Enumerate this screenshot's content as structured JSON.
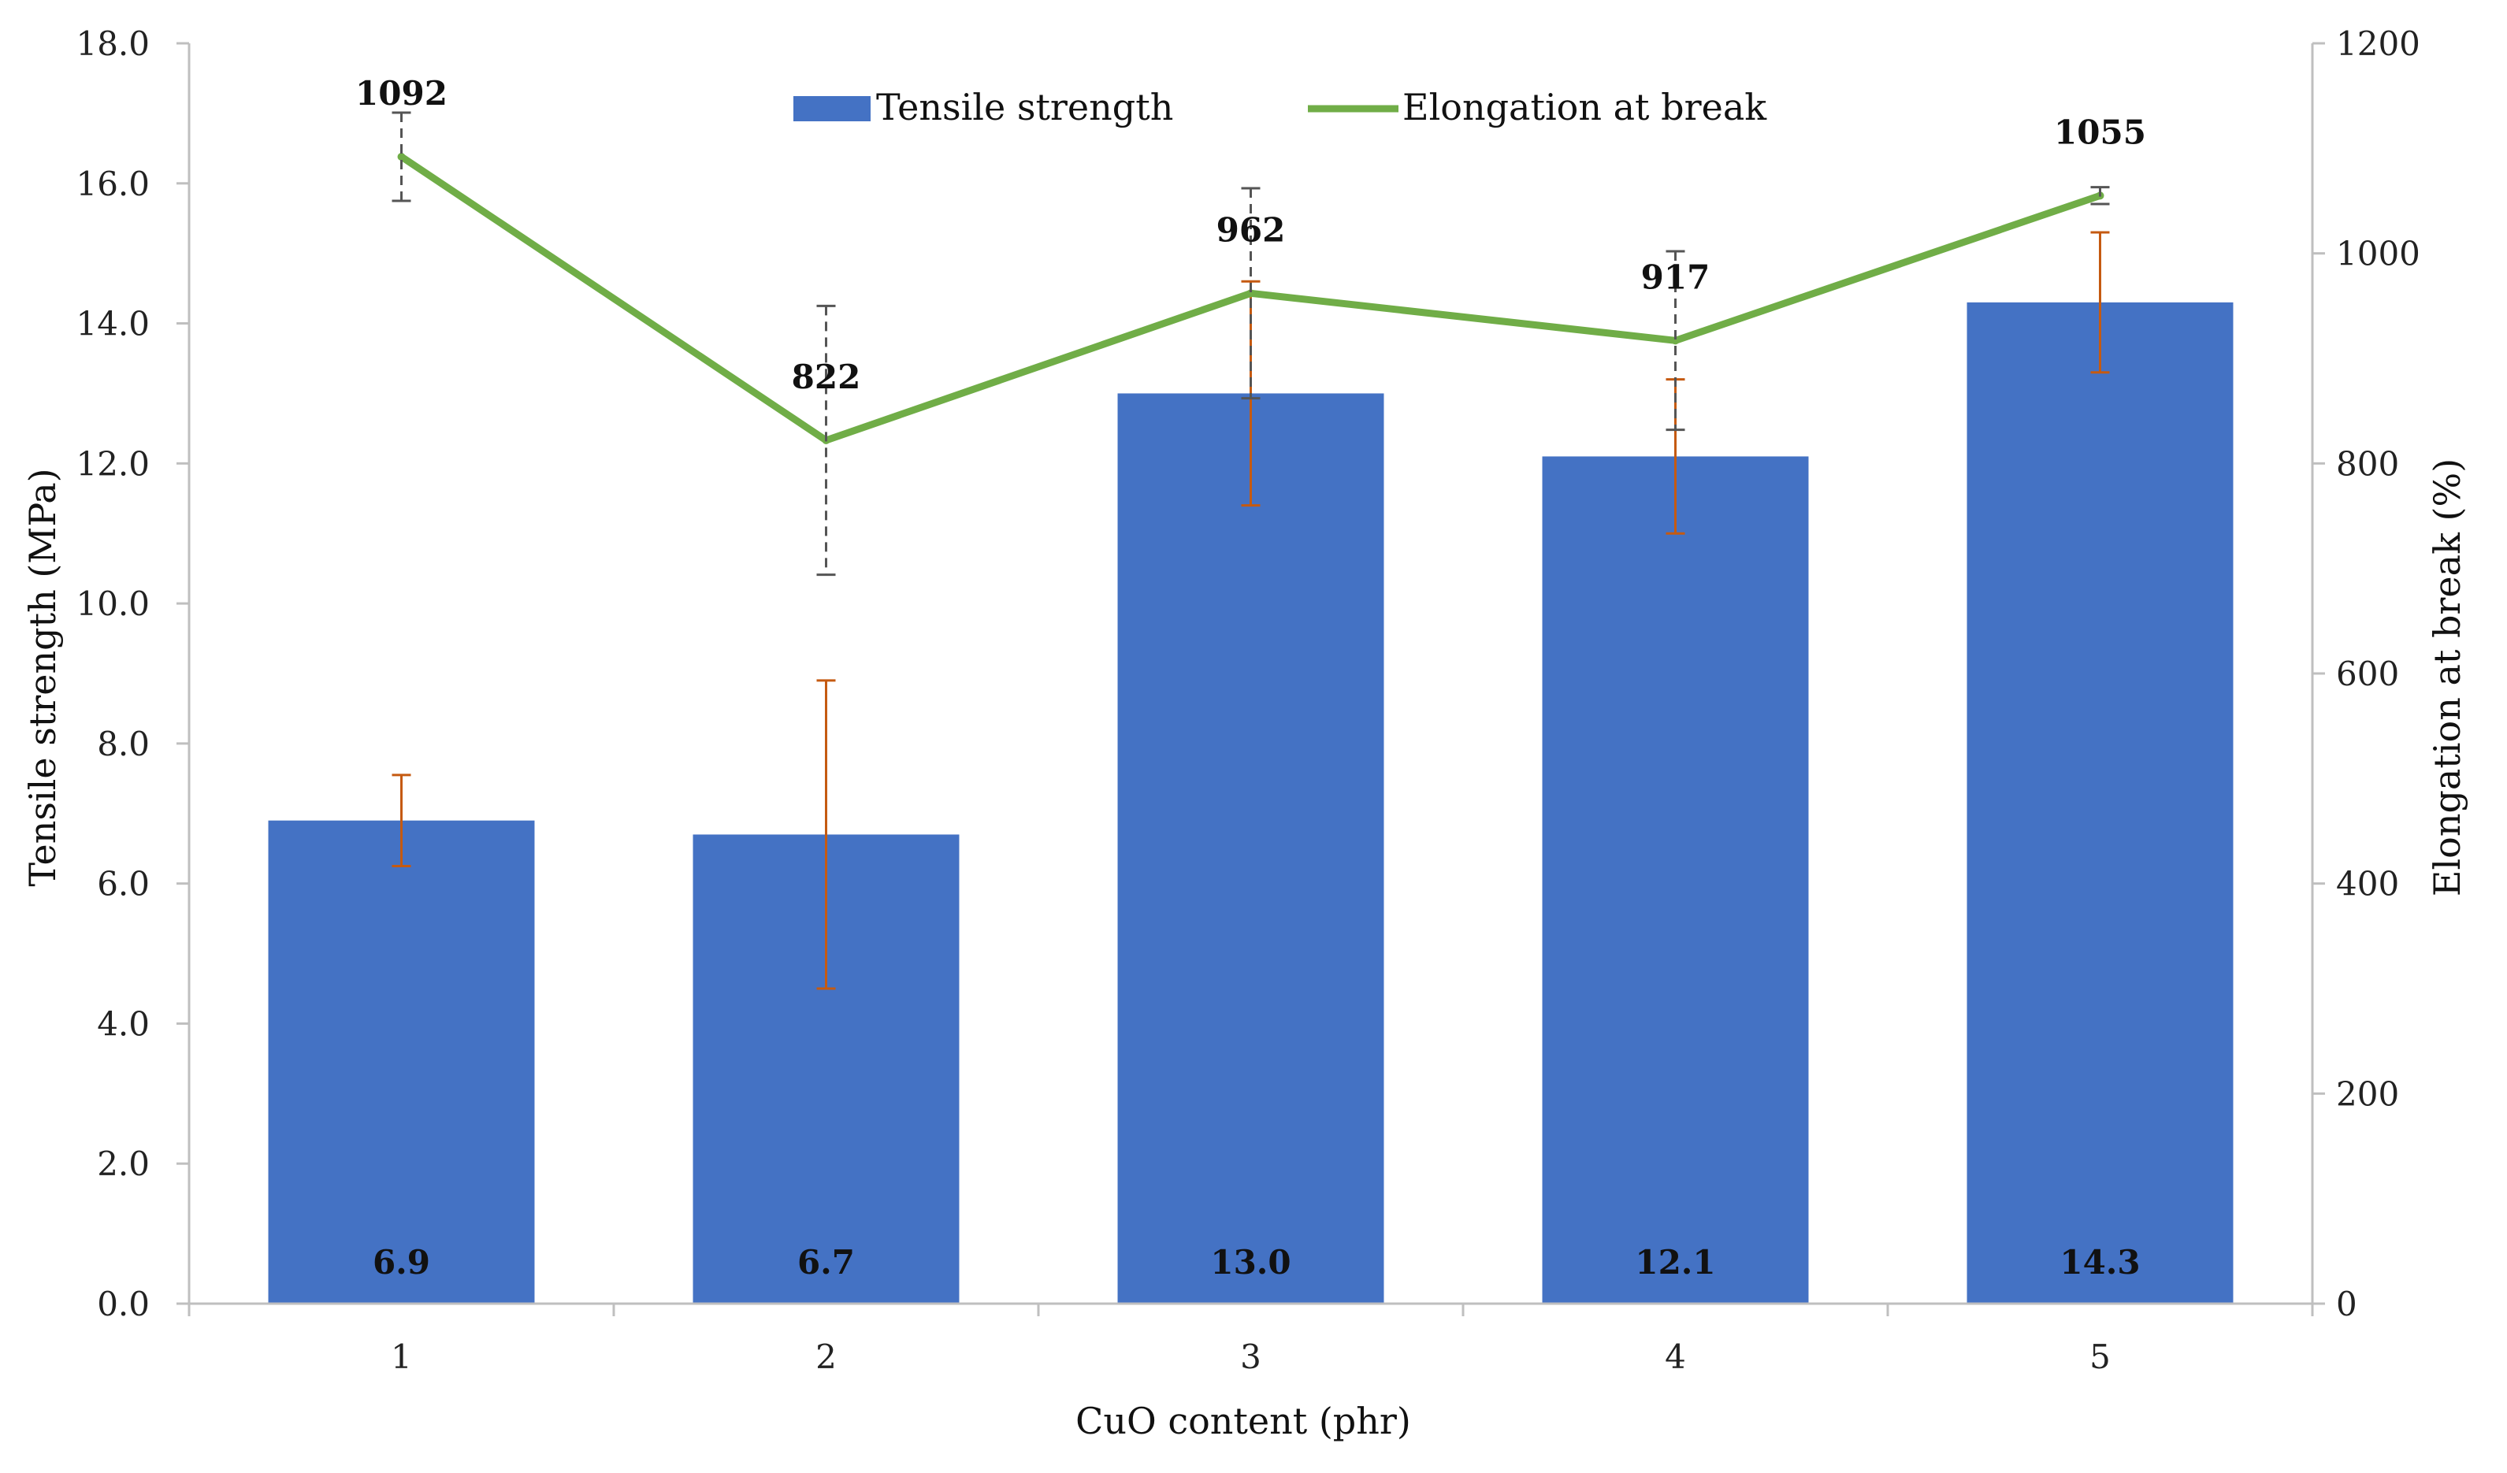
{
  "chart_data": {
    "type": "bar+line",
    "title": "",
    "xlabel": "CuO content (phr)",
    "ylabel": "Tensile strength (MPa)",
    "y2label": "Elongation at break (%)",
    "categories": [
      "1",
      "2",
      "3",
      "4",
      "5"
    ],
    "ylim": [
      0,
      18
    ],
    "y_ticks": [
      0,
      2,
      4,
      6,
      8,
      10,
      12,
      14,
      16,
      18
    ],
    "y_tick_labels": [
      "0.0",
      "2.0",
      "4.0",
      "6.0",
      "8.0",
      "10.0",
      "12.0",
      "14.0",
      "16.0",
      "18.0"
    ],
    "y2lim": [
      0,
      1200
    ],
    "y2_ticks": [
      0,
      200,
      400,
      600,
      800,
      1000,
      1200
    ],
    "y2_tick_labels": [
      "0",
      "200",
      "400",
      "600",
      "800",
      "1000",
      "1200"
    ],
    "grid": false,
    "legend_position": "top-center",
    "series": [
      {
        "name": "Tensile strength",
        "type": "bar",
        "axis": "left",
        "color": "#4472C4",
        "error_color": "#C55A11",
        "values": [
          6.9,
          6.7,
          13.0,
          12.1,
          14.3
        ],
        "labels": [
          "6.9",
          "6.7",
          "13.0",
          "12.1",
          "14.3"
        ],
        "errors": [
          0.65,
          2.2,
          1.6,
          1.1,
          1.0
        ]
      },
      {
        "name": "Elongation at break",
        "type": "line",
        "axis": "right",
        "color": "#70AD47",
        "error_color": "#555555",
        "values": [
          1092,
          822,
          962,
          917,
          1055
        ],
        "labels": [
          "1092",
          "822",
          "962",
          "917",
          "1055"
        ],
        "errors": [
          42,
          128,
          100,
          85,
          8
        ]
      }
    ]
  }
}
